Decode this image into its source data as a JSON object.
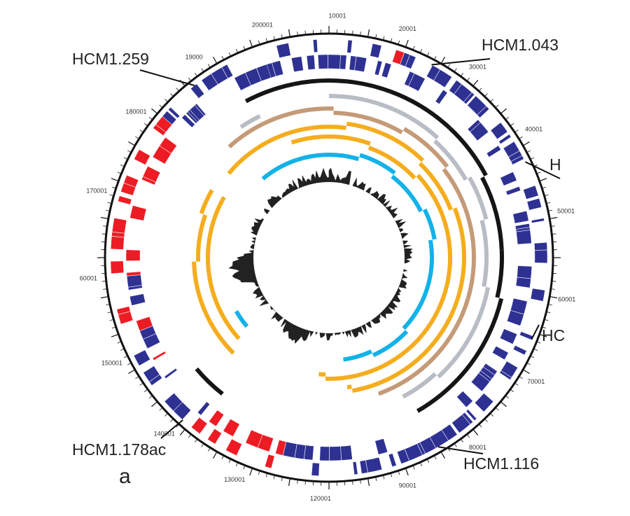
{
  "panel_label": "a",
  "colors": {
    "outline": "#111111",
    "gene_blue": "#2e3192",
    "gene_red": "#ed1c24",
    "ring_black": "#151515",
    "ring_gray": "#b8bcc4",
    "ring_tan": "#c49a78",
    "ring_orange": "#f5ad1e",
    "ring_cyan": "#13b2e8",
    "gc_fill": "#222222"
  },
  "scale": {
    "labels": [
      {
        "text": "10001",
        "deg": 2
      },
      {
        "text": "20001",
        "deg": 19
      },
      {
        "text": "30001",
        "deg": 38
      },
      {
        "text": "40001",
        "deg": 58
      },
      {
        "text": "50001",
        "deg": 79
      },
      {
        "text": "60001",
        "deg": 100
      },
      {
        "text": "70001",
        "deg": 121
      },
      {
        "text": "80001",
        "deg": 142
      },
      {
        "text": "90001",
        "deg": 161
      },
      {
        "text": "120001",
        "deg": 182
      },
      {
        "text": "130001",
        "deg": 203
      },
      {
        "text": "140001",
        "deg": 223
      },
      {
        "text": "150001",
        "deg": 244
      },
      {
        "text": "60001",
        "deg": 265
      },
      {
        "text": "170001",
        "deg": 286
      },
      {
        "text": "180001",
        "deg": 307
      },
      {
        "text": "19000",
        "deg": 326
      },
      {
        "text": "200001",
        "deg": 344
      }
    ]
  },
  "callouts": [
    {
      "text": "HCM1.043",
      "deg": 28
    },
    {
      "text": "H",
      "deg": 64
    },
    {
      "text": "HC",
      "deg": 112
    },
    {
      "text": "HCM1.116",
      "deg": 150
    },
    {
      "text": "HCM1.178ac",
      "deg": 222
    },
    {
      "text": "HCM1.259",
      "deg": 322
    }
  ]
}
